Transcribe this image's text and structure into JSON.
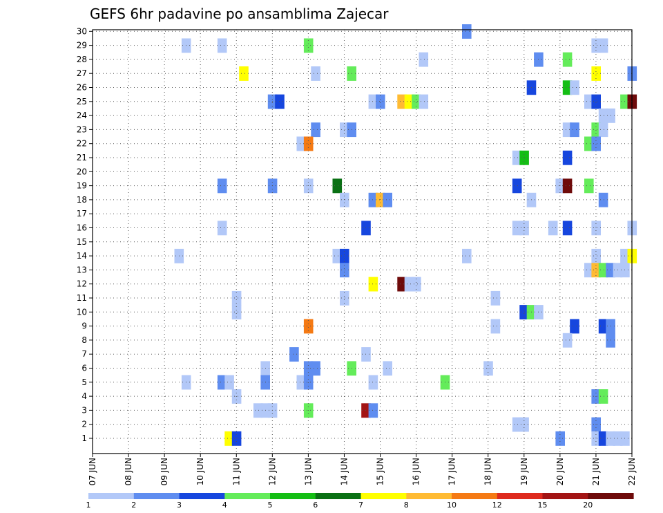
{
  "chart_data": {
    "type": "heatmap",
    "title": "GEFS 6hr padavine po ansamblima Zajecar",
    "x_tick_labels": [
      "07 JUN",
      "08 JUN",
      "09 JUN",
      "10 JUN",
      "11 JUN",
      "12 JUN",
      "13 JUN",
      "14 JUN",
      "15 JUN",
      "16 JUN",
      "17 JUN",
      "18 JUN",
      "19 JUN",
      "20 JUN",
      "21 JUN",
      "22 JUN"
    ],
    "y_tick_labels": [
      "1",
      "2",
      "3",
      "4",
      "5",
      "6",
      "7",
      "8",
      "9",
      "10",
      "11",
      "12",
      "13",
      "14",
      "15",
      "16",
      "17",
      "18",
      "19",
      "20",
      "21",
      "22",
      "23",
      "24",
      "25",
      "26",
      "27",
      "28",
      "29",
      "30"
    ],
    "colorbar": {
      "labels": [
        "1",
        "2",
        "3",
        "4",
        "5",
        "6",
        "7",
        "8",
        "10",
        "12",
        "15",
        "20"
      ],
      "colors": [
        "#b2c8f8",
        "#5f8df0",
        "#1646de",
        "#64ec5a",
        "#14be14",
        "#0a7014",
        "#ffff00",
        "#ffbb33",
        "#f57a14",
        "#de2a1e",
        "#a31414",
        "#6e0a0a"
      ]
    },
    "grid": true,
    "cells": [
      [
        30,
        17.4,
        2
      ],
      [
        29,
        9.6,
        1
      ],
      [
        29,
        10.6,
        1
      ],
      [
        29,
        13.0,
        4
      ],
      [
        29,
        21.0,
        1
      ],
      [
        29,
        21.2,
        1
      ],
      [
        28,
        16.2,
        1
      ],
      [
        28,
        19.4,
        2
      ],
      [
        28,
        20.2,
        4
      ],
      [
        27,
        11.2,
        7
      ],
      [
        27,
        13.2,
        1
      ],
      [
        27,
        14.2,
        4
      ],
      [
        27,
        21.0,
        7
      ],
      [
        27,
        22.0,
        2
      ],
      [
        26,
        19.2,
        3
      ],
      [
        26,
        20.2,
        5
      ],
      [
        26,
        20.4,
        1
      ],
      [
        25,
        12.0,
        2
      ],
      [
        25,
        12.2,
        3
      ],
      [
        25,
        14.8,
        1
      ],
      [
        25,
        15.0,
        2
      ],
      [
        25,
        15.6,
        8
      ],
      [
        25,
        15.8,
        7
      ],
      [
        25,
        16.0,
        4
      ],
      [
        25,
        16.2,
        1
      ],
      [
        25,
        20.8,
        1
      ],
      [
        25,
        21.0,
        3
      ],
      [
        25,
        21.8,
        4
      ],
      [
        25,
        22.0,
        12
      ],
      [
        24,
        21.2,
        1
      ],
      [
        24,
        21.4,
        1
      ],
      [
        23,
        13.2,
        2
      ],
      [
        23,
        14.0,
        1
      ],
      [
        23,
        14.2,
        2
      ],
      [
        23,
        20.2,
        1
      ],
      [
        23,
        20.4,
        2
      ],
      [
        23,
        21.0,
        4
      ],
      [
        23,
        21.2,
        1
      ],
      [
        22,
        12.8,
        1
      ],
      [
        22,
        13.0,
        9
      ],
      [
        22,
        20.8,
        4
      ],
      [
        22,
        21.0,
        2
      ],
      [
        21,
        18.8,
        1
      ],
      [
        21,
        19.0,
        5
      ],
      [
        21,
        20.2,
        3
      ],
      [
        19,
        10.6,
        2
      ],
      [
        19,
        12.0,
        2
      ],
      [
        19,
        13.0,
        1
      ],
      [
        19,
        13.8,
        6
      ],
      [
        19,
        18.8,
        3
      ],
      [
        19,
        20.0,
        1
      ],
      [
        19,
        20.2,
        12
      ],
      [
        19,
        20.8,
        4
      ],
      [
        18,
        14.0,
        1
      ],
      [
        18,
        14.8,
        2
      ],
      [
        18,
        15.0,
        8
      ],
      [
        18,
        15.2,
        2
      ],
      [
        18,
        19.2,
        1
      ],
      [
        18,
        21.2,
        2
      ],
      [
        16,
        10.6,
        1
      ],
      [
        16,
        14.6,
        3
      ],
      [
        16,
        18.8,
        1
      ],
      [
        16,
        19.0,
        1
      ],
      [
        16,
        19.8,
        1
      ],
      [
        16,
        20.2,
        3
      ],
      [
        16,
        21.0,
        1
      ],
      [
        16,
        22.0,
        1
      ],
      [
        14,
        9.4,
        1
      ],
      [
        14,
        13.8,
        1
      ],
      [
        14,
        14.0,
        3
      ],
      [
        14,
        17.4,
        1
      ],
      [
        14,
        21.0,
        1
      ],
      [
        14,
        21.8,
        1
      ],
      [
        14,
        22.0,
        7
      ],
      [
        13,
        14.0,
        2
      ],
      [
        13,
        20.8,
        1
      ],
      [
        13,
        21.0,
        8
      ],
      [
        13,
        21.2,
        4
      ],
      [
        13,
        21.4,
        2
      ],
      [
        13,
        21.6,
        1
      ],
      [
        13,
        21.8,
        1
      ],
      [
        12,
        14.8,
        7
      ],
      [
        12,
        15.6,
        12
      ],
      [
        12,
        15.8,
        1
      ],
      [
        12,
        16.0,
        1
      ],
      [
        11,
        11.0,
        1
      ],
      [
        11,
        14.0,
        1
      ],
      [
        11,
        18.2,
        1
      ],
      [
        10,
        11.0,
        1
      ],
      [
        10,
        19.0,
        3
      ],
      [
        10,
        19.2,
        4
      ],
      [
        10,
        19.4,
        1
      ],
      [
        9,
        13.0,
        9
      ],
      [
        9,
        18.2,
        1
      ],
      [
        9,
        20.4,
        3
      ],
      [
        9,
        21.2,
        3
      ],
      [
        9,
        21.4,
        2
      ],
      [
        8,
        20.2,
        1
      ],
      [
        8,
        21.4,
        2
      ],
      [
        7,
        12.6,
        2
      ],
      [
        7,
        14.6,
        1
      ],
      [
        6,
        11.8,
        1
      ],
      [
        6,
        13.0,
        2
      ],
      [
        6,
        13.2,
        2
      ],
      [
        6,
        14.2,
        4
      ],
      [
        6,
        15.2,
        1
      ],
      [
        6,
        18.0,
        1
      ],
      [
        5,
        9.6,
        1
      ],
      [
        5,
        10.6,
        2
      ],
      [
        5,
        10.8,
        1
      ],
      [
        5,
        11.8,
        2
      ],
      [
        5,
        12.8,
        1
      ],
      [
        5,
        13.0,
        2
      ],
      [
        5,
        14.8,
        1
      ],
      [
        5,
        16.8,
        4
      ],
      [
        4,
        11.0,
        1
      ],
      [
        4,
        21.0,
        2
      ],
      [
        4,
        21.2,
        4
      ],
      [
        3,
        11.6,
        1
      ],
      [
        3,
        11.8,
        1
      ],
      [
        3,
        12.0,
        1
      ],
      [
        3,
        13.0,
        4
      ],
      [
        3,
        14.6,
        11
      ],
      [
        3,
        14.8,
        2
      ],
      [
        2,
        18.8,
        1
      ],
      [
        2,
        19.0,
        1
      ],
      [
        2,
        21.0,
        2
      ],
      [
        1,
        10.8,
        7
      ],
      [
        1,
        11.0,
        3
      ],
      [
        1,
        20.0,
        2
      ],
      [
        1,
        21.0,
        1
      ],
      [
        1,
        21.2,
        3
      ],
      [
        1,
        21.4,
        1
      ],
      [
        1,
        21.6,
        1
      ],
      [
        1,
        21.8,
        1
      ]
    ]
  }
}
